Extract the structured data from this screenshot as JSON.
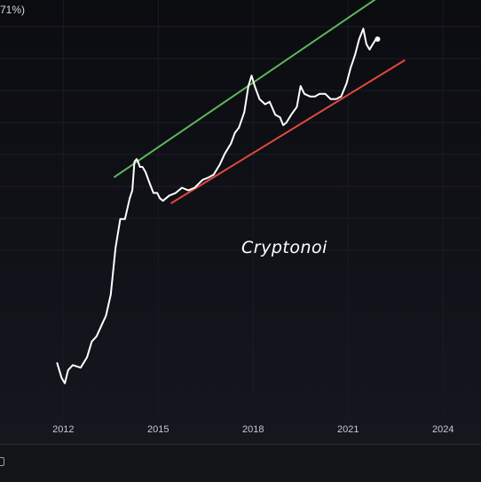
{
  "header": {
    "value_text": "71%)"
  },
  "watermark": "Cryptonoi",
  "chart_data": {
    "type": "line",
    "title": "",
    "xlabel": "",
    "ylabel": "",
    "x_ticks": [
      "2012",
      "2015",
      "2018",
      "2021",
      "2024"
    ],
    "xlim": [
      2010.0,
      2025.2
    ],
    "ylim": [
      0,
      100
    ],
    "y_scale": "log",
    "grid": true,
    "legend": "none",
    "series": [
      {
        "values": [
          [
            2011.8,
            21
          ],
          [
            2011.95,
            15
          ],
          [
            2012.05,
            13
          ],
          [
            2012.15,
            18
          ],
          [
            2012.3,
            20
          ],
          [
            2012.55,
            19
          ],
          [
            2012.75,
            23
          ],
          [
            2012.9,
            29
          ],
          [
            2013.05,
            31
          ],
          [
            2013.2,
            35
          ],
          [
            2013.35,
            39
          ],
          [
            2013.5,
            47
          ],
          [
            2013.65,
            65
          ],
          [
            2013.8,
            76
          ],
          [
            2013.95,
            76
          ],
          [
            2014.1,
            84
          ],
          [
            2014.18,
            87
          ],
          [
            2014.25,
            98
          ],
          [
            2014.32,
            99
          ],
          [
            2014.36,
            98
          ],
          [
            2014.42,
            96
          ],
          [
            2014.5,
            96
          ],
          [
            2014.6,
            94
          ],
          [
            2014.72,
            90
          ],
          [
            2014.85,
            86
          ],
          [
            2014.97,
            86
          ],
          [
            2015.05,
            84
          ],
          [
            2015.15,
            83
          ],
          [
            2015.35,
            85
          ],
          [
            2015.55,
            86
          ],
          [
            2015.75,
            88
          ],
          [
            2015.95,
            87
          ],
          [
            2016.15,
            88
          ],
          [
            2016.4,
            91
          ],
          [
            2016.6,
            92
          ],
          [
            2016.75,
            93
          ],
          [
            2016.95,
            97
          ],
          [
            2017.1,
            101
          ],
          [
            2017.3,
            105
          ],
          [
            2017.42,
            109
          ],
          [
            2017.55,
            111
          ],
          [
            2017.72,
            117
          ],
          [
            2017.85,
            127
          ],
          [
            2017.95,
            131
          ],
          [
            2018.05,
            127
          ],
          [
            2018.2,
            122
          ],
          [
            2018.38,
            120
          ],
          [
            2018.52,
            121
          ],
          [
            2018.7,
            116
          ],
          [
            2018.85,
            115
          ],
          [
            2018.95,
            112
          ],
          [
            2019.05,
            113
          ],
          [
            2019.2,
            116
          ],
          [
            2019.38,
            119
          ],
          [
            2019.5,
            127
          ],
          [
            2019.62,
            124
          ],
          [
            2019.8,
            123
          ],
          [
            2019.95,
            123
          ],
          [
            2020.1,
            124
          ],
          [
            2020.28,
            124
          ],
          [
            2020.45,
            122
          ],
          [
            2020.62,
            122
          ],
          [
            2020.78,
            123
          ],
          [
            2020.95,
            128
          ],
          [
            2021.08,
            134
          ],
          [
            2021.22,
            139
          ],
          [
            2021.35,
            145
          ],
          [
            2021.48,
            149
          ],
          [
            2021.58,
            143
          ],
          [
            2021.68,
            141
          ],
          [
            2021.78,
            143
          ],
          [
            2021.88,
            145
          ],
          [
            2021.93,
            145
          ]
        ]
      },
      {
        "name": "upper_channel",
        "values": [
          [
            2013.6,
            92
          ],
          [
            2022.8,
            168
          ]
        ]
      },
      {
        "name": "lower_channel",
        "values": [
          [
            2015.4,
            82
          ],
          [
            2022.8,
            137
          ]
        ]
      }
    ]
  }
}
